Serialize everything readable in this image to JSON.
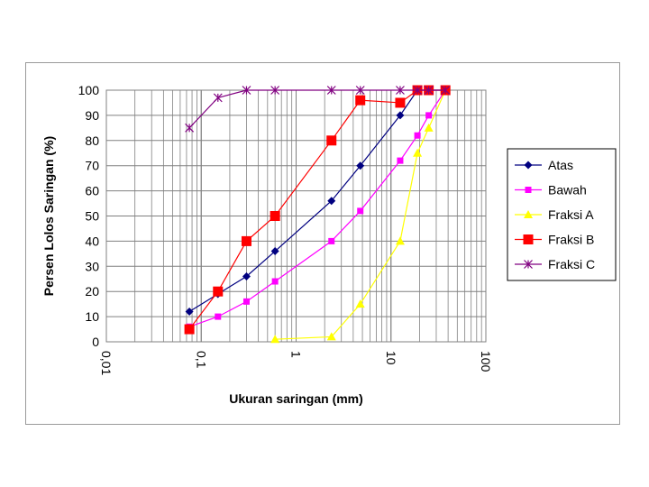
{
  "chart_data": {
    "type": "line",
    "title": "",
    "xlabel": "Ukuran saringan (mm)",
    "ylabel": "Persen Lolos Saringan (%)",
    "xscale": "log",
    "xlim": [
      0.01,
      100
    ],
    "ylim": [
      0,
      100
    ],
    "x_tick_labels": [
      "0,01",
      "0,1",
      "1",
      "10",
      "100"
    ],
    "y_tick_labels": [
      "0",
      "10",
      "20",
      "30",
      "40",
      "50",
      "60",
      "70",
      "80",
      "90",
      "100"
    ],
    "grid": true,
    "legend_position": "right",
    "series": [
      {
        "name": "Atas",
        "color": "#000080",
        "marker": "diamond",
        "x": [
          0.075,
          0.15,
          0.3,
          0.6,
          2.36,
          4.75,
          12.5,
          19,
          25,
          37.5
        ],
        "y": [
          12,
          19,
          26,
          36,
          56,
          70,
          90,
          100,
          100,
          100
        ]
      },
      {
        "name": "Bawah",
        "color": "#ff00ff",
        "marker": "square-small",
        "x": [
          0.075,
          0.15,
          0.3,
          0.6,
          2.36,
          4.75,
          12.5,
          19,
          25,
          37.5
        ],
        "y": [
          6,
          10,
          16,
          24,
          40,
          52,
          72,
          82,
          90,
          100
        ]
      },
      {
        "name": "Fraksi A",
        "color": "#ffff00",
        "marker": "triangle",
        "x": [
          0.6,
          2.36,
          4.75,
          12.5,
          19,
          25,
          37.5
        ],
        "y": [
          1,
          2,
          15,
          40,
          75,
          85,
          100
        ]
      },
      {
        "name": "Fraksi B",
        "color": "#ff0000",
        "marker": "square-large",
        "x": [
          0.075,
          0.15,
          0.3,
          0.6,
          2.36,
          4.75,
          12.5,
          19,
          25,
          37.5
        ],
        "y": [
          5,
          20,
          40,
          50,
          80,
          96,
          95,
          100,
          100,
          100
        ]
      },
      {
        "name": "Fraksi C",
        "color": "#800080",
        "marker": "asterisk",
        "x": [
          0.075,
          0.15,
          0.3,
          0.6,
          2.36,
          4.75,
          12.5,
          19,
          25,
          37.5
        ],
        "y": [
          85,
          97,
          100,
          100,
          100,
          100,
          100,
          100,
          100,
          100
        ]
      }
    ]
  }
}
